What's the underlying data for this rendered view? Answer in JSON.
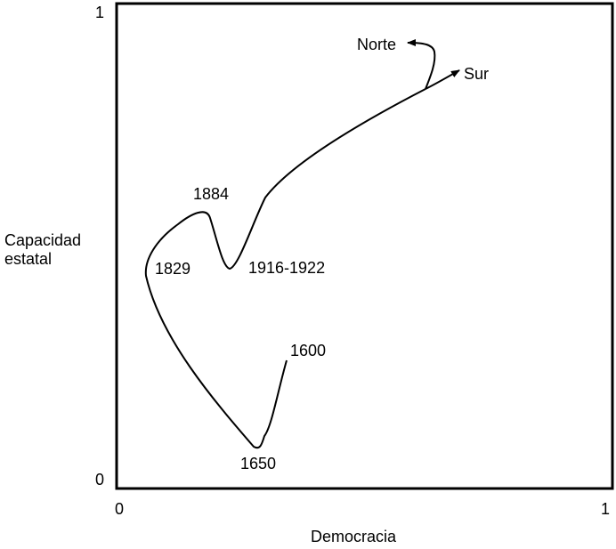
{
  "axes": {
    "y_title": "Capacidad estatal",
    "x_title": "Democracia",
    "y_ticks": [
      "1",
      "0"
    ],
    "x_ticks": [
      "0",
      "1"
    ]
  },
  "labels": {
    "norte": "Norte",
    "sur": "Sur",
    "y1884": "1884",
    "y1829": "1829",
    "y1916": "1916-1922",
    "y1600": "1600",
    "y1650": "1650"
  }
}
